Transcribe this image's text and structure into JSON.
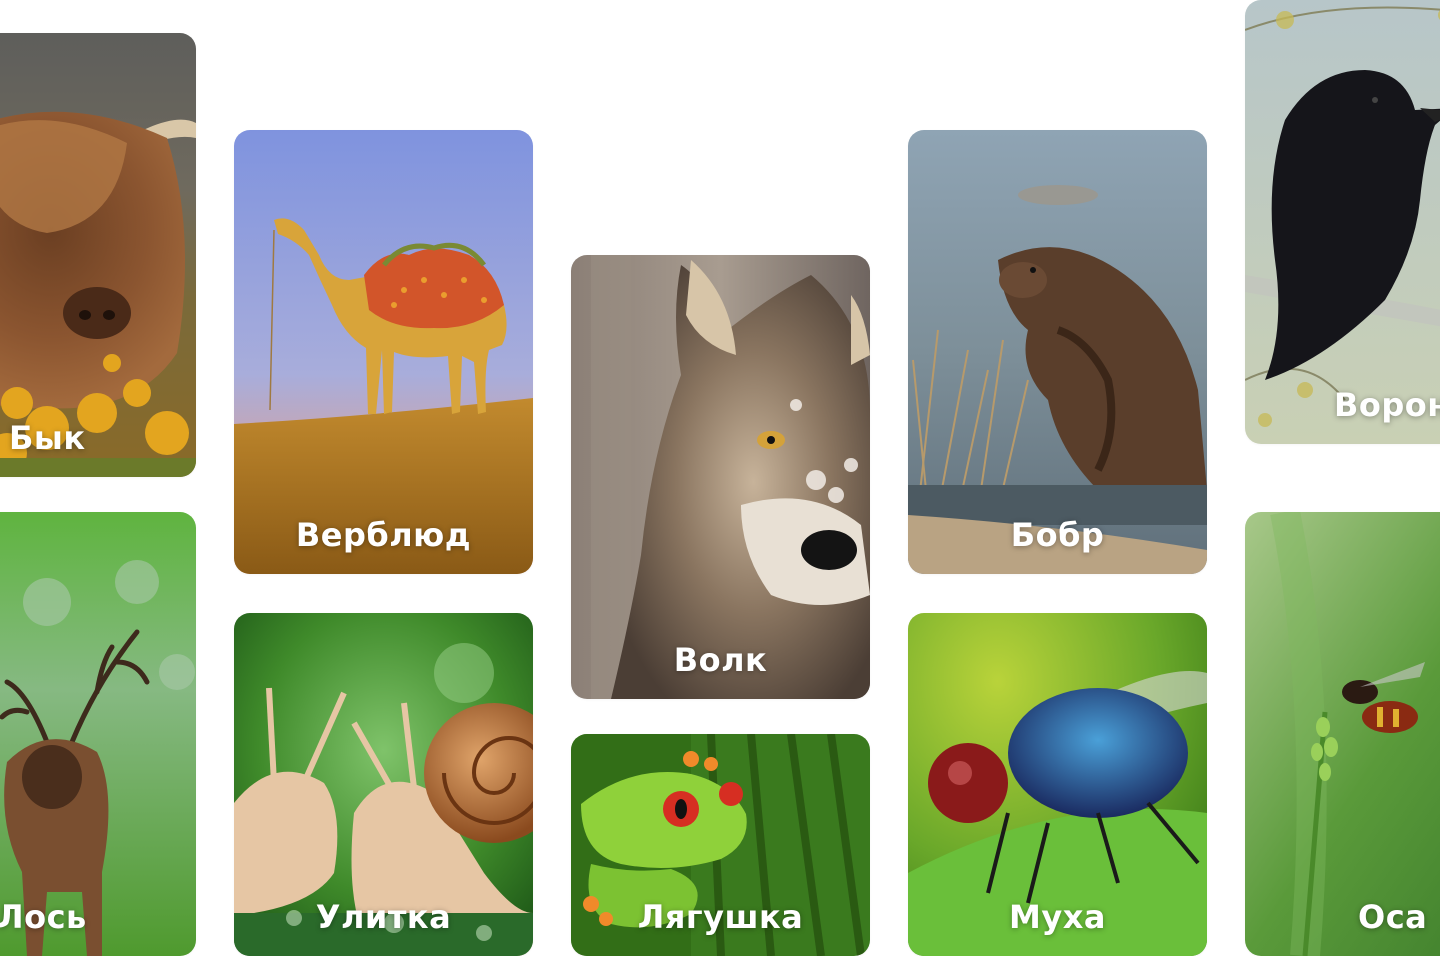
{
  "cards": [
    {
      "id": "bull",
      "label": "Бык"
    },
    {
      "id": "camel",
      "label": "Верблюд"
    },
    {
      "id": "wolf",
      "label": "Волк"
    },
    {
      "id": "beaver",
      "label": "Бобр"
    },
    {
      "id": "crow",
      "label": "Ворона"
    },
    {
      "id": "moose",
      "label": "Лось"
    },
    {
      "id": "snail",
      "label": "Улитка"
    },
    {
      "id": "frog",
      "label": "Лягушка"
    },
    {
      "id": "fly",
      "label": "Муха"
    },
    {
      "id": "wasp",
      "label": "Оса"
    }
  ],
  "colors": {
    "background": "#ffffff",
    "label": "#ffffff"
  }
}
